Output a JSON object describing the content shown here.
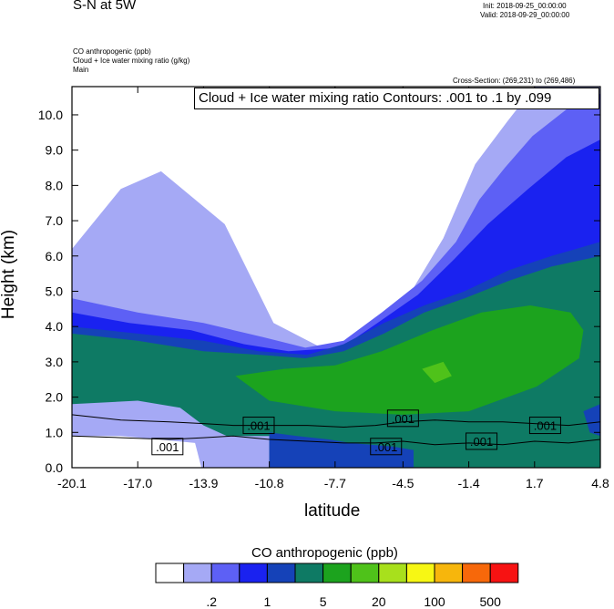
{
  "header": {
    "title": "S-N at 5W",
    "init": "Init: 2018-09-25_00:00:00",
    "valid": "Valid: 2018-09-29_00:00:00",
    "field1": "CO anthropogenic   (ppb)",
    "field2": "Cloud + Ice water mixing ratio   (g/kg)",
    "field3": "Main",
    "cross_section": "Cross-Section: (269,231) to (269,486)"
  },
  "chart_data": {
    "type": "heatmap",
    "title": "Cloud + Ice water mixing ratio Contours: .001 to .1 by .099",
    "xlabel": "latitude",
    "ylabel": "Height (km)",
    "xlim": [
      -20.1,
      4.8
    ],
    "ylim": [
      0,
      10.8
    ],
    "x_ticks": [
      "-20.1",
      "-17.0",
      "-13.9",
      "-10.8",
      "-7.7",
      "-4.5",
      "-1.4",
      "1.7",
      "4.8"
    ],
    "y_ticks": [
      "0.0",
      "1.0",
      "2.0",
      "3.0",
      "4.0",
      "5.0",
      "6.0",
      "7.0",
      "8.0",
      "9.0",
      "10.0"
    ],
    "grid": false,
    "colorbar": {
      "title": "CO anthropogenic  (ppb)",
      "labels": [
        ".2",
        "1",
        "5",
        "20",
        "100",
        "500"
      ],
      "colors": [
        "#ffffff",
        "#a5a9f5",
        "#5d60f5",
        "#1a22f0",
        "#1542b8",
        "#0e7a64",
        "#1ca31e",
        "#4fc21a",
        "#a8e01c",
        "#f7f714",
        "#f7b60c",
        "#f7680a",
        "#f71212"
      ]
    },
    "contour_labels": [
      ".001",
      ".001",
      ".001",
      ".001",
      ".001",
      ".001"
    ],
    "regions": [
      {
        "name": "upper-band-light",
        "level": 1,
        "points": [
          [
            -15.9,
            8.4
          ],
          [
            -12.9,
            6.9
          ],
          [
            -10.6,
            4.1
          ],
          [
            -7.7,
            3.2
          ],
          [
            -4.5,
            4.6
          ],
          [
            -2.6,
            6.5
          ],
          [
            -1.1,
            8.6
          ],
          [
            0.4,
            9.8
          ],
          [
            1.7,
            10.8
          ],
          [
            4.8,
            10.8
          ],
          [
            4.8,
            3.0
          ],
          [
            -20.1,
            3.0
          ],
          [
            -20.1,
            6.2
          ],
          [
            -17.8,
            7.9
          ]
        ]
      },
      {
        "name": "upper-band-mid",
        "level": 2,
        "points": [
          [
            -20.1,
            4.8
          ],
          [
            -17.0,
            4.4
          ],
          [
            -13.9,
            4.1
          ],
          [
            -11.1,
            3.7
          ],
          [
            -9.1,
            3.4
          ],
          [
            -7.3,
            3.6
          ],
          [
            -5.5,
            4.4
          ],
          [
            -3.6,
            5.3
          ],
          [
            -2.0,
            6.4
          ],
          [
            -0.9,
            7.6
          ],
          [
            0.3,
            8.5
          ],
          [
            1.6,
            9.4
          ],
          [
            3.3,
            10.2
          ],
          [
            4.8,
            10.6
          ],
          [
            4.8,
            3.0
          ],
          [
            -20.1,
            3.0
          ]
        ]
      },
      {
        "name": "upper-band-blue",
        "level": 3,
        "points": [
          [
            -20.1,
            4.4
          ],
          [
            -17.4,
            4.1
          ],
          [
            -14.5,
            3.9
          ],
          [
            -12.0,
            3.5
          ],
          [
            -9.9,
            3.3
          ],
          [
            -7.4,
            3.4
          ],
          [
            -5.7,
            4.1
          ],
          [
            -3.8,
            4.9
          ],
          [
            -2.1,
            5.9
          ],
          [
            -0.5,
            6.9
          ],
          [
            1.4,
            7.9
          ],
          [
            3.2,
            8.8
          ],
          [
            4.8,
            9.3
          ],
          [
            4.8,
            1.8
          ],
          [
            -20.1,
            1.8
          ]
        ]
      },
      {
        "name": "mid-band-darkblue",
        "level": 4,
        "points": [
          [
            -20.1,
            4.0
          ],
          [
            -17.0,
            3.8
          ],
          [
            -13.9,
            3.6
          ],
          [
            -11.3,
            3.3
          ],
          [
            -9.0,
            3.2
          ],
          [
            -7.3,
            3.5
          ],
          [
            -5.4,
            4.1
          ],
          [
            -3.5,
            4.6
          ],
          [
            -1.6,
            5.0
          ],
          [
            0.5,
            5.6
          ],
          [
            2.5,
            6.0
          ],
          [
            4.8,
            6.4
          ],
          [
            4.8,
            1.2
          ],
          [
            -20.1,
            1.2
          ]
        ]
      },
      {
        "name": "mid-band-teal",
        "level": 5,
        "points": [
          [
            -20.1,
            3.8
          ],
          [
            -17.0,
            3.6
          ],
          [
            -13.9,
            3.3
          ],
          [
            -11.3,
            3.2
          ],
          [
            -9.1,
            3.1
          ],
          [
            -7.3,
            3.3
          ],
          [
            -5.4,
            3.8
          ],
          [
            -3.5,
            4.4
          ],
          [
            -1.6,
            4.8
          ],
          [
            0.5,
            5.3
          ],
          [
            2.5,
            5.7
          ],
          [
            4.8,
            6.0
          ],
          [
            4.8,
            0.0
          ],
          [
            -20.1,
            0.0
          ]
        ]
      },
      {
        "name": "mid-band-green",
        "level": 6,
        "points": [
          [
            -12.4,
            2.6
          ],
          [
            -10.1,
            2.8
          ],
          [
            -7.7,
            2.9
          ],
          [
            -5.5,
            3.3
          ],
          [
            -3.1,
            3.9
          ],
          [
            -0.8,
            4.4
          ],
          [
            1.5,
            4.6
          ],
          [
            3.4,
            4.4
          ],
          [
            4.0,
            3.9
          ],
          [
            3.8,
            3.1
          ],
          [
            1.8,
            2.3
          ],
          [
            -1.4,
            1.6
          ],
          [
            -4.5,
            1.5
          ],
          [
            -7.7,
            1.6
          ],
          [
            -10.8,
            1.9
          ]
        ]
      },
      {
        "name": "green-patch",
        "level": 7,
        "points": [
          [
            -3.6,
            2.8
          ],
          [
            -2.6,
            3.0
          ],
          [
            -2.2,
            2.6
          ],
          [
            -3.0,
            2.4
          ]
        ]
      },
      {
        "name": "lower-left-light",
        "level": 1,
        "points": [
          [
            -20.1,
            1.8
          ],
          [
            -17.0,
            1.9
          ],
          [
            -15.0,
            1.7
          ],
          [
            -13.9,
            1.2
          ],
          [
            -12.8,
            0.9
          ],
          [
            -10.8,
            0.9
          ],
          [
            -10.8,
            0.0
          ],
          [
            -20.1,
            0.0
          ]
        ]
      },
      {
        "name": "lower-left-white",
        "level": 0,
        "points": [
          [
            -20.1,
            0.9
          ],
          [
            -17.8,
            0.9
          ],
          [
            -16.0,
            0.8
          ],
          [
            -14.3,
            0.7
          ],
          [
            -14.0,
            0.0
          ],
          [
            -20.1,
            0.0
          ]
        ]
      },
      {
        "name": "lower-middle-blue",
        "level": 4,
        "points": [
          [
            -10.8,
            1.0
          ],
          [
            -9.5,
            0.9
          ],
          [
            -8.0,
            0.8
          ],
          [
            -7.0,
            0.7
          ],
          [
            -5.0,
            0.6
          ],
          [
            -4.0,
            0.5
          ],
          [
            -4.0,
            0.0
          ],
          [
            -10.8,
            0.0
          ]
        ]
      },
      {
        "name": "lower-right-darkblue",
        "level": 4,
        "points": [
          [
            4.0,
            1.6
          ],
          [
            4.8,
            1.8
          ],
          [
            4.8,
            0.9
          ],
          [
            4.3,
            1.0
          ]
        ]
      }
    ],
    "contours": [
      {
        "label": ".001",
        "x": [
          -20.1,
          -17.8,
          -15.5,
          -13.9,
          -12.5,
          -10.8,
          -9.0,
          -7.3,
          -5.8,
          -4.5,
          -3.0,
          -1.4,
          0.2,
          1.7,
          3.3,
          4.8
        ],
        "y": [
          1.5,
          1.35,
          1.3,
          1.25,
          1.2,
          1.2,
          1.2,
          1.15,
          1.2,
          1.3,
          1.35,
          1.3,
          1.3,
          1.25,
          1.2,
          1.3
        ]
      },
      {
        "label": ".001",
        "x": [
          -20.1,
          -17.8,
          -15.5,
          -13.9,
          -12.5,
          -10.8,
          -9.0,
          -7.3,
          -5.8,
          -4.5,
          -3.0,
          -1.4,
          0.2,
          1.7,
          3.3,
          4.8
        ],
        "y": [
          0.9,
          0.85,
          0.8,
          0.85,
          0.9,
          0.8,
          0.75,
          0.7,
          0.7,
          0.75,
          0.65,
          0.7,
          0.65,
          0.75,
          0.7,
          0.8
        ]
      }
    ]
  }
}
